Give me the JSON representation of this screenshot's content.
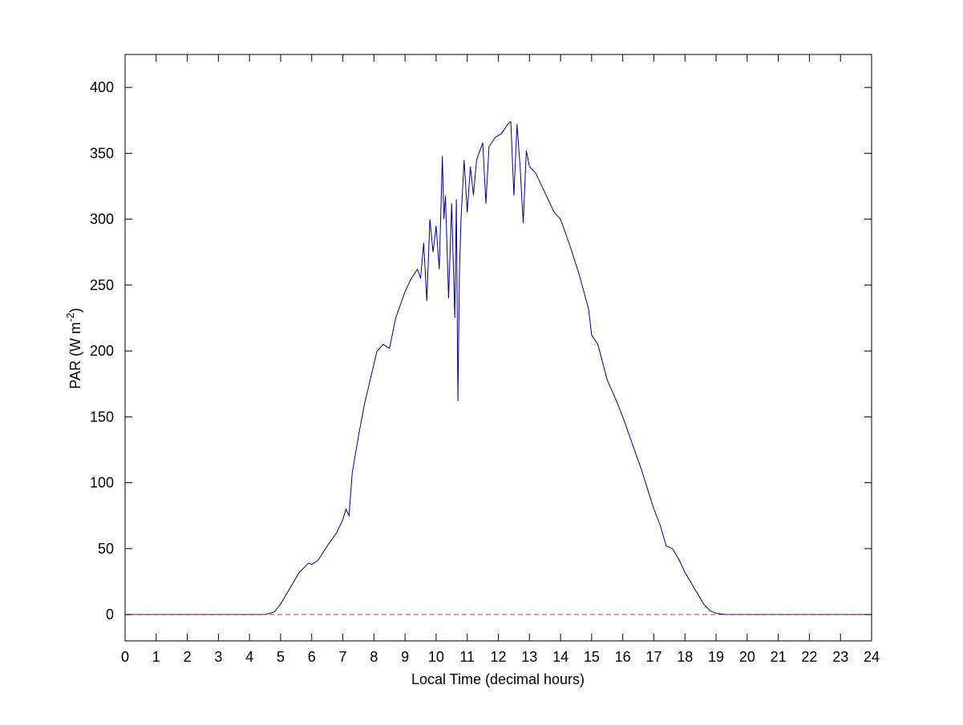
{
  "chart_data": {
    "type": "line",
    "xlabel": "Local Time (decimal hours)",
    "ylabel": [
      "PAR (W m",
      "-2",
      ")"
    ],
    "xlim": [
      0,
      24
    ],
    "ylim": [
      -20,
      425
    ],
    "xticks": [
      0,
      1,
      2,
      3,
      4,
      5,
      6,
      7,
      8,
      9,
      10,
      11,
      12,
      13,
      14,
      15,
      16,
      17,
      18,
      19,
      20,
      21,
      22,
      23,
      24
    ],
    "yticks": [
      0,
      50,
      100,
      150,
      200,
      250,
      300,
      350,
      400
    ],
    "box": true,
    "series": [
      {
        "color": "#00008b",
        "style": "solid",
        "x": [
          0,
          4.5,
          4.8,
          5.0,
          5.3,
          5.6,
          5.9,
          6.0,
          6.2,
          6.5,
          6.8,
          7.0,
          7.1,
          7.2,
          7.3,
          7.5,
          7.7,
          7.9,
          8.1,
          8.3,
          8.5,
          8.7,
          9.0,
          9.2,
          9.4,
          9.5,
          9.6,
          9.7,
          9.8,
          9.9,
          10.0,
          10.1,
          10.2,
          10.25,
          10.3,
          10.4,
          10.5,
          10.6,
          10.65,
          10.7,
          10.75,
          10.8,
          10.9,
          11.0,
          11.1,
          11.2,
          11.3,
          11.5,
          11.6,
          11.7,
          11.9,
          12.1,
          12.3,
          12.4,
          12.5,
          12.6,
          12.7,
          12.8,
          12.9,
          13.0,
          13.2,
          13.5,
          13.8,
          14.0,
          14.3,
          14.6,
          14.9,
          15.0,
          15.2,
          15.5,
          15.8,
          16.0,
          16.3,
          16.6,
          16.8,
          17.0,
          17.2,
          17.4,
          17.6,
          17.8,
          18.0,
          18.3,
          18.6,
          18.8,
          19.0,
          19.3,
          19.6,
          20.0,
          24
        ],
        "values": [
          0,
          0,
          2,
          8,
          20,
          32,
          39,
          38,
          41,
          52,
          62,
          72,
          80,
          75,
          107,
          135,
          160,
          180,
          200,
          205,
          202,
          225,
          245,
          255,
          262,
          255,
          282,
          238,
          300,
          275,
          295,
          262,
          348,
          300,
          318,
          240,
          312,
          225,
          315,
          162,
          260,
          300,
          345,
          305,
          340,
          318,
          345,
          358,
          312,
          355,
          362,
          365,
          372,
          374,
          318,
          372,
          340,
          297,
          352,
          340,
          335,
          320,
          305,
          300,
          280,
          258,
          232,
          212,
          205,
          178,
          162,
          150,
          130,
          110,
          95,
          80,
          68,
          52,
          50,
          42,
          32,
          20,
          8,
          3,
          1,
          0,
          0,
          0,
          0
        ]
      },
      {
        "color": "#d62728",
        "style": "dashed",
        "x": [
          0,
          24
        ],
        "values": [
          0,
          0
        ]
      }
    ]
  }
}
